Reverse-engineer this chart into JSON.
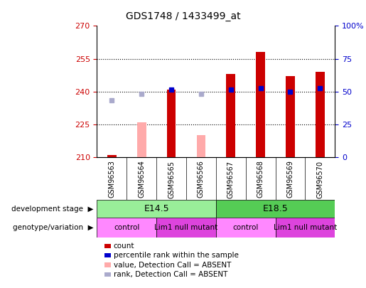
{
  "title": "GDS1748 / 1433499_at",
  "samples": [
    "GSM96563",
    "GSM96564",
    "GSM96565",
    "GSM96566",
    "GSM96567",
    "GSM96568",
    "GSM96569",
    "GSM96570"
  ],
  "ylim_left": [
    210,
    270
  ],
  "yticks_left": [
    210,
    225,
    240,
    255,
    270
  ],
  "yticks_right": [
    0,
    25,
    50,
    75,
    100
  ],
  "count_values": [
    211,
    null,
    241,
    null,
    248,
    258,
    247,
    249
  ],
  "rank_values": [
    null,
    null,
    241,
    null,
    241,
    241.5,
    240,
    241.5
  ],
  "absent_count_values": [
    null,
    226,
    null,
    220,
    null,
    null,
    null,
    null
  ],
  "absent_rank_values": [
    236,
    239,
    null,
    239,
    null,
    null,
    null,
    null
  ],
  "bar_color_red": "#cc0000",
  "bar_color_pink": "#ffaaaa",
  "dot_color_blue": "#0000cc",
  "dot_color_lightblue": "#aaaacc",
  "plot_bg": "#ffffff",
  "xaxis_bg": "#bbbbbb",
  "dev_stage_colors": [
    "#99ee99",
    "#55cc55"
  ],
  "dev_stage_labels": [
    "E14.5",
    "E18.5"
  ],
  "dev_stage_starts": [
    0,
    4
  ],
  "dev_stage_ends": [
    3,
    7
  ],
  "geno_colors": [
    "#ff88ff",
    "#dd44dd",
    "#ff88ff",
    "#dd44dd"
  ],
  "geno_labels": [
    "control",
    "Lim1 null mutant",
    "control",
    "Lim1 null mutant"
  ],
  "geno_starts": [
    0,
    2,
    4,
    6
  ],
  "geno_ends": [
    1,
    3,
    5,
    7
  ],
  "legend_labels": [
    "count",
    "percentile rank within the sample",
    "value, Detection Call = ABSENT",
    "rank, Detection Call = ABSENT"
  ],
  "legend_colors": [
    "#cc0000",
    "#0000cc",
    "#ffaaaa",
    "#aaaacc"
  ],
  "left_label_color": "#cc0000",
  "right_label_color": "#0000cc"
}
